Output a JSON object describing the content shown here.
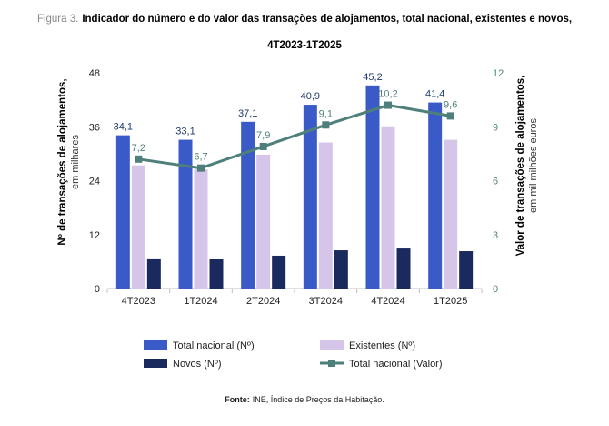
{
  "title": {
    "prefix": "Figura 3.",
    "line1": "Indicador do número e do valor das transações de alojamentos, total nacional, existentes e novos,",
    "line2": "4T2023-1T2025"
  },
  "source": {
    "label": "Fonte:",
    "text": "INE, Índice de Preços da Habitação."
  },
  "colors": {
    "total": "#3a5bc7",
    "existentes": "#d5c5e8",
    "novos": "#1b2a5e",
    "valor": "#4f7f7a"
  },
  "chart_data": {
    "type": "bar",
    "categories": [
      "4T2023",
      "1T2024",
      "2T2024",
      "3T2024",
      "4T2024",
      "1T2025"
    ],
    "series": [
      {
        "name": "Total nacional (Nº)",
        "type": "bar",
        "axis": "left",
        "values": [
          34.1,
          33.1,
          37.1,
          40.9,
          45.2,
          41.4
        ],
        "labels": [
          "34,1",
          "33,1",
          "37,1",
          "40,9",
          "45,2",
          "41,4"
        ]
      },
      {
        "name": "Existentes (Nº)",
        "type": "bar",
        "axis": "left",
        "values": [
          27.4,
          26.5,
          29.8,
          32.5,
          36.1,
          33.1
        ]
      },
      {
        "name": "Novos (Nº)",
        "type": "bar",
        "axis": "left",
        "values": [
          6.7,
          6.6,
          7.3,
          8.5,
          9.1,
          8.3
        ]
      },
      {
        "name": "Total nacional (Valor)",
        "type": "line",
        "axis": "right",
        "values": [
          7.2,
          6.7,
          7.9,
          9.1,
          10.2,
          9.6
        ],
        "labels": [
          "7,2",
          "6,7",
          "7,9",
          "9,1",
          "10,2",
          "9,6"
        ]
      }
    ],
    "left_axis": {
      "label_bold": "Nº de transações de alojamentos,",
      "label_normal": "em milhares",
      "ylim": [
        0,
        48
      ],
      "ticks": [
        0,
        12,
        24,
        36,
        48
      ],
      "tick_labels": [
        "0",
        "12",
        "24",
        "36",
        "48"
      ]
    },
    "right_axis": {
      "label_bold": "Valor de transações de alojamentos,",
      "label_normal": "em mil milhões euros",
      "ylim": [
        0,
        12
      ],
      "ticks": [
        0,
        3,
        6,
        9,
        12
      ],
      "tick_labels": [
        "0",
        "3",
        "6",
        "9",
        "12"
      ]
    },
    "grid": false,
    "legend_position": "bottom"
  }
}
